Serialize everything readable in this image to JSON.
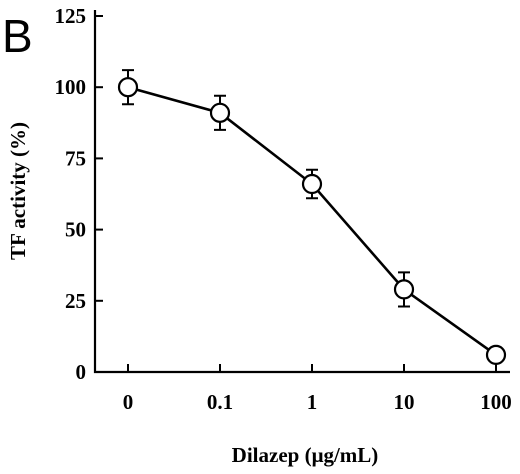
{
  "panel_label": "B",
  "chart_data": {
    "type": "line",
    "categories": [
      "0",
      "0.1",
      "1",
      "10",
      "100"
    ],
    "series": [
      {
        "values": [
          100,
          91,
          66,
          29,
          6
        ],
        "errors": [
          6,
          6,
          5,
          6,
          0
        ]
      }
    ],
    "title": "",
    "xlabel": "Dilazep (μg/mL)",
    "ylabel": "TF activity (%)",
    "ylim": [
      0,
      125
    ],
    "yticks": [
      0,
      25,
      50,
      75,
      100,
      125
    ],
    "grid": false,
    "legend": "none",
    "colors": {
      "line": "#000000",
      "marker_fill": "#ffffff"
    }
  }
}
